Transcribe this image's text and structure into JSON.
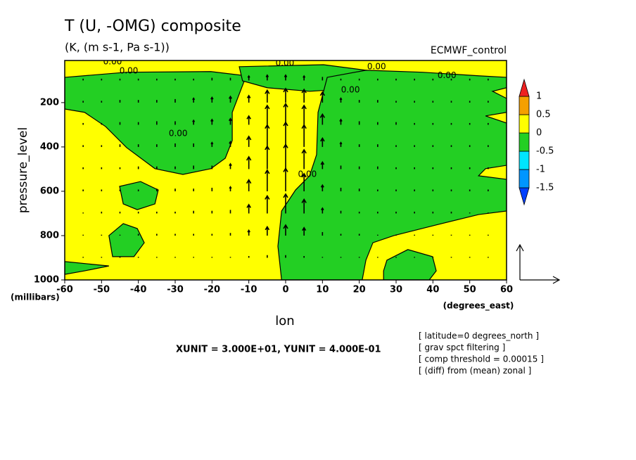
{
  "chart_data": {
    "type": "contour-vector",
    "title": "T (U, -OMG) composite",
    "subtitle": "(K, (m s-1, Pa s-1))",
    "dataset": "ECMWF_control",
    "x_label": "lon",
    "y_label": "pressure_level",
    "x_unit": "(degrees_east)",
    "y_unit": "(millibars)",
    "xlim": [
      -60,
      60
    ],
    "xticks": [
      -60,
      -50,
      -40,
      -30,
      -20,
      -10,
      0,
      10,
      20,
      30,
      40,
      50,
      60
    ],
    "ylim": [
      1000,
      10
    ],
    "yticks": [
      200,
      400,
      600,
      800,
      1000
    ],
    "colorbar": {
      "levels": [
        -1.5,
        -1,
        -0.5,
        0,
        0.5,
        1
      ],
      "colors": [
        "#0040ff",
        "#0096ff",
        "#00e5ff",
        "#23cf23",
        "#ffff00",
        "#f5a000",
        "#ee2020"
      ]
    },
    "negative_regions": [
      {
        "lon": [
          -60,
          -43.2,
          -20.3,
          -10.7,
          -14.5,
          -14.5,
          -16.4,
          -20.3,
          -27.9,
          -35.5,
          -43.2,
          -48.9,
          -54.6,
          -60
        ],
        "pressure": [
          86,
          63,
          60,
          79,
          244,
          371,
          451,
          498,
          524,
          498,
          403,
          308,
          244,
          229
        ]
      },
      {
        "lon": [
          -12.6,
          10.3,
          21.8,
          12.2,
          6.5,
          -5,
          -11.7
        ],
        "pressure": [
          38,
          29,
          54,
          143,
          149,
          133,
          102
        ]
      },
      {
        "lon": [
          11.3,
          21.8,
          37.1,
          52.4,
          60,
          60,
          56.2,
          60,
          60,
          54.3,
          60,
          60,
          54.3,
          52.4,
          60,
          60,
          52.4,
          40.9,
          29.4,
          23.7,
          21.8,
          20.8,
          -1.1,
          -2.1,
          -1.1,
          2.7,
          6.5,
          8.4,
          8.8
        ],
        "pressure": [
          86,
          54,
          63,
          79,
          86,
          133,
          149,
          181,
          244,
          260,
          292,
          483,
          498,
          530,
          546,
          689,
          705,
          752,
          800,
          832,
          911,
          1000,
          1000,
          848,
          689,
          594,
          530,
          435,
          244
        ]
      },
      {
        "lon": [
          -45.1,
          -39.4,
          -34.6,
          -35.5,
          -40.3,
          -44.1
        ],
        "pressure": [
          578,
          556,
          594,
          657,
          683,
          657
        ]
      },
      {
        "lon": [
          -48,
          -44.1,
          -40.3,
          -38.4,
          -41.2,
          -47
        ],
        "pressure": [
          800,
          746,
          768,
          832,
          895,
          895
        ]
      },
      {
        "lon": [
          -60,
          -48,
          -54.6,
          -60
        ],
        "pressure": [
          917,
          937,
          959,
          975
        ]
      },
      {
        "lon": [
          27.5,
          33.2,
          39.9,
          40.9,
          39,
          26.6,
          26.6
        ],
        "pressure": [
          911,
          863,
          895,
          959,
          1000,
          1000,
          959
        ]
      }
    ],
    "contour_labels": [
      {
        "text": "0.00",
        "lon": -47,
        "pressure": 16
      },
      {
        "text": "0.00",
        "lon": -42.6,
        "pressure": 57
      },
      {
        "text": "0.00",
        "lon": -0.2,
        "pressure": 22
      },
      {
        "text": "0.00",
        "lon": 24.7,
        "pressure": 38
      },
      {
        "text": "0.00",
        "lon": 43.8,
        "pressure": 79
      },
      {
        "text": "0.00",
        "lon": 17.6,
        "pressure": 143
      },
      {
        "text": "0.00",
        "lon": -29.2,
        "pressure": 340
      },
      {
        "text": "0.00",
        "lon": 5.9,
        "pressure": 524
      }
    ],
    "vectors": {
      "lon": [
        -55,
        -50,
        -45,
        -40,
        -35,
        -30,
        -25,
        -20,
        -15,
        -10,
        -5,
        0,
        5,
        10,
        15,
        20,
        25,
        30,
        35,
        40,
        45,
        50,
        55
      ],
      "pressure": [
        100,
        200,
        300,
        400,
        500,
        600,
        700,
        800,
        900
      ],
      "w": [
        [
          0.02,
          0.02,
          0.02,
          0.02,
          0.02,
          0.02,
          0.02,
          0.03,
          0.03,
          0.05,
          0.06,
          0.06,
          0.05,
          0.04,
          0.02,
          0.02,
          0.02,
          0.02,
          0.02,
          0.02,
          0.02,
          0.02,
          0.02
        ],
        [
          0.02,
          0.02,
          0.03,
          0.03,
          0.03,
          0.04,
          0.05,
          0.06,
          0.07,
          0.08,
          0.14,
          0.16,
          0.15,
          0.12,
          0.05,
          0.03,
          0.03,
          0.02,
          0.02,
          0.02,
          0.02,
          0.02,
          0.02
        ],
        [
          0.02,
          0.02,
          0.03,
          0.03,
          0.04,
          0.04,
          0.05,
          0.06,
          0.07,
          0.1,
          0.22,
          0.24,
          0.22,
          0.12,
          0.06,
          0.04,
          0.03,
          0.03,
          0.02,
          0.02,
          0.02,
          0.02,
          0.02
        ],
        [
          0.02,
          0.02,
          0.03,
          0.03,
          0.03,
          0.04,
          0.04,
          0.05,
          0.06,
          0.12,
          0.25,
          0.28,
          0.25,
          0.1,
          0.05,
          0.03,
          0.03,
          0.02,
          0.02,
          0.02,
          0.02,
          0.02,
          0.02
        ],
        [
          0.02,
          0.02,
          0.02,
          0.03,
          0.03,
          0.03,
          0.04,
          0.04,
          0.06,
          0.14,
          0.26,
          0.28,
          0.22,
          0.08,
          0.04,
          0.03,
          0.03,
          0.02,
          0.02,
          0.02,
          0.02,
          0.02,
          0.02
        ],
        [
          0.02,
          0.02,
          0.02,
          0.02,
          0.03,
          0.03,
          0.03,
          0.04,
          0.05,
          0.13,
          0.24,
          0.26,
          0.2,
          0.07,
          0.04,
          0.03,
          0.02,
          0.02,
          0.02,
          0.02,
          0.02,
          0.02,
          0.02
        ],
        [
          0.01,
          0.02,
          0.02,
          0.02,
          0.02,
          0.02,
          0.03,
          0.03,
          0.04,
          0.1,
          0.2,
          0.22,
          0.16,
          0.06,
          0.03,
          0.02,
          0.02,
          0.02,
          0.02,
          0.02,
          0.02,
          0.01,
          0.01
        ],
        [
          0.01,
          0.01,
          0.01,
          0.02,
          0.02,
          0.02,
          0.02,
          0.02,
          0.03,
          0.06,
          0.1,
          0.12,
          0.09,
          0.04,
          0.02,
          0.02,
          0.01,
          0.01,
          0.01,
          0.01,
          0.01,
          0.01,
          0.01
        ],
        [
          0.01,
          0.01,
          0.01,
          0.01,
          0.01,
          0.01,
          0.01,
          0.01,
          0.01,
          0.02,
          0.03,
          0.03,
          0.02,
          0.01,
          0.01,
          0.01,
          0.01,
          0.01,
          0.01,
          0.01,
          0.01,
          0.01,
          0.01
        ]
      ]
    },
    "reference_vector": {
      "u": 30,
      "w": 0.4,
      "label": "XUNIT = 3.000E+01, YUNIT = 4.000E-01"
    },
    "notes": [
      "[ latitude=0 degrees_north ]",
      "[ grav spct filtering ]",
      "[ comp threshold = 0.00015 ]",
      "[ (diff) from (mean) zonal ]"
    ]
  }
}
